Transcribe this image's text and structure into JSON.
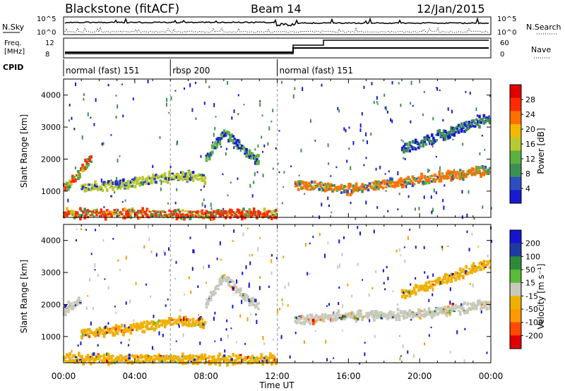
{
  "header": {
    "station": "Blackstone (fitACF)",
    "beam": "Beam 14",
    "date": "12/Jan/2015"
  },
  "aux_panels": {
    "nsky_label": "N.Sky",
    "nsearch_label": "N.Search",
    "nsky_ticks": [
      "10^5",
      "10^0"
    ],
    "nsearch_ticks": [
      "10^5",
      "10^0"
    ],
    "freq_label_1": "Freq.",
    "freq_label_2": "[MHz]",
    "freq_ticks": [
      "12",
      "8"
    ],
    "nave_label": "Nave",
    "nave_ticks": [
      "60",
      "0"
    ],
    "cpid_label": "CPID",
    "cpid_segments": [
      {
        "label": "normal (fast) 151",
        "start_h": 0,
        "end_h": 6
      },
      {
        "label": "rbsp 200",
        "start_h": 6,
        "end_h": 12
      },
      {
        "label": "normal (fast) 151",
        "start_h": 12,
        "end_h": 24
      }
    ]
  },
  "chart_data": [
    {
      "type": "heatmap",
      "title": "",
      "xlabel": "Time UT",
      "ylabel": "Slant Range [km]",
      "xlim": [
        0,
        24
      ],
      "ylim": [
        180,
        4500
      ],
      "xticks": [
        "00:00",
        "04:00",
        "08:00",
        "12:00",
        "16:00",
        "20:00",
        "00:00"
      ],
      "yticks": [
        "1000",
        "2000",
        "3000",
        "4000"
      ],
      "colorbar_label": "Power [dB]",
      "colorbar_ticks": [
        "28",
        "24",
        "20",
        "16",
        "12",
        "8",
        "4"
      ],
      "colorbar_range": [
        0,
        30
      ],
      "colorbar_colors": [
        "#1919d2",
        "#2b4fc0",
        "#3e8f55",
        "#5cb040",
        "#b8c92f",
        "#f5b800",
        "#ff7000",
        "#ff2a00",
        "#e00000"
      ],
      "features": [
        {
          "name": "early echo band",
          "t": [
            0.0,
            0.4,
            0.8,
            1.2,
            1.6
          ],
          "range_km": [
            1050,
            1250,
            1500,
            1800,
            2050
          ],
          "level": 24
        },
        {
          "name": "near-range band",
          "t": [
            0.0,
            4.0,
            8.0,
            12.0
          ],
          "range_km": [
            300,
            300,
            280,
            280
          ],
          "level": 24
        },
        {
          "name": "pre-noon band",
          "t": [
            1.0,
            4.0,
            6.5,
            8.0
          ],
          "range_km": [
            1100,
            1250,
            1500,
            1400
          ],
          "level": 14
        },
        {
          "name": "afternoon arc",
          "t": [
            8.0,
            9.0,
            10.5,
            11.0
          ],
          "range_km": [
            2000,
            2850,
            2100,
            1900
          ],
          "level": 12
        },
        {
          "name": "post-noon band",
          "t": [
            13.0,
            16.0,
            20.0,
            24.0
          ],
          "range_km": [
            1200,
            1050,
            1350,
            1650
          ],
          "level": 20
        },
        {
          "name": "upper band",
          "t": [
            19.0,
            22.0,
            24.0
          ],
          "range_km": [
            2300,
            2900,
            3300
          ],
          "level": 8
        }
      ]
    },
    {
      "type": "heatmap",
      "title": "",
      "xlabel": "Time UT",
      "ylabel": "Slant Range [km]",
      "xlim": [
        0,
        24
      ],
      "ylim": [
        180,
        4500
      ],
      "xticks": [
        "00:00",
        "04:00",
        "08:00",
        "12:00",
        "16:00",
        "20:00",
        "00:00"
      ],
      "yticks": [
        "1000",
        "2000",
        "3000",
        "4000"
      ],
      "colorbar_label": "Velocity [m s⁻¹]",
      "colorbar_ticks": [
        "200",
        "100",
        "50",
        "15",
        "-15",
        "-50",
        "-100",
        "-200"
      ],
      "colorbar_range": [
        -250,
        250
      ],
      "colorbar_colors": [
        "#e00000",
        "#ff4a00",
        "#ff9a00",
        "#f0b000",
        "#c8c8bc",
        "#5aba3a",
        "#2e8a3a",
        "#1e3aa0",
        "#1414d0"
      ],
      "features": [
        {
          "name": "early echo band",
          "t": [
            0.0,
            0.5,
            1.0
          ],
          "range_km": [
            1800,
            2000,
            2100
          ],
          "velocity": 0
        },
        {
          "name": "near-range band",
          "t": [
            0.0,
            4.0,
            8.0,
            12.0
          ],
          "range_km": [
            300,
            300,
            280,
            280
          ],
          "velocity": -40
        },
        {
          "name": "pre-noon band",
          "t": [
            1.0,
            4.0,
            6.5,
            8.0
          ],
          "range_km": [
            1100,
            1250,
            1500,
            1400
          ],
          "velocity": -60
        },
        {
          "name": "afternoon arc",
          "t": [
            8.0,
            9.0,
            10.5,
            11.0
          ],
          "range_km": [
            2000,
            2850,
            2100,
            1900
          ],
          "velocity": 0
        },
        {
          "name": "post-noon band",
          "t": [
            13.0,
            16.0,
            20.0,
            24.0
          ],
          "range_km": [
            1500,
            1650,
            1700,
            2000
          ],
          "velocity": 0
        },
        {
          "name": "upper band",
          "t": [
            19.0,
            22.0,
            24.0
          ],
          "range_km": [
            2300,
            2900,
            3300
          ],
          "velocity": -30
        }
      ]
    }
  ]
}
